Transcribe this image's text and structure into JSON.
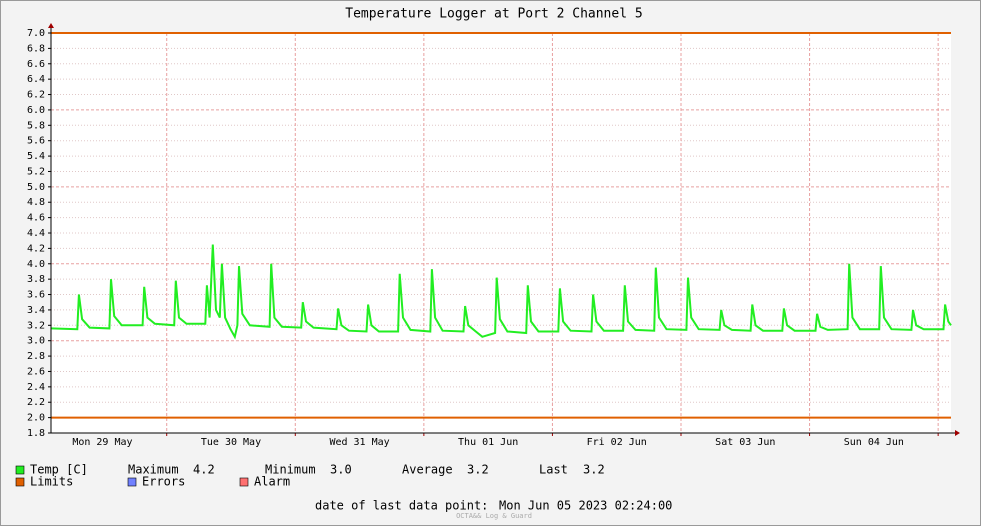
{
  "chart_data": {
    "type": "line",
    "title": "Temperature Logger at Port 2 Channel 5",
    "xlim": [
      0,
      168
    ],
    "xticks": [
      {
        "value": 9.6,
        "label": "Mon 29 May"
      },
      {
        "value": 33.6,
        "label": "Tue 30 May"
      },
      {
        "value": 57.6,
        "label": "Wed 31 May"
      },
      {
        "value": 81.6,
        "label": "Thu 01 Jun"
      },
      {
        "value": 105.6,
        "label": "Fri 02 Jun"
      },
      {
        "value": 129.6,
        "label": "Sat 03 Jun"
      },
      {
        "value": 153.6,
        "label": "Sun 04 Jun"
      }
    ],
    "xgrid": [
      21.6,
      45.6,
      69.6,
      93.6,
      117.6,
      141.6,
      165.6
    ],
    "ylim": [
      1.8,
      7.0
    ],
    "yticks": [
      1.8,
      {
        "value": 2,
        "label": "2.0"
      },
      2.2,
      2.4,
      2.6,
      2.8,
      {
        "value": 3,
        "label": "3.0"
      },
      3.2,
      3.4,
      3.6,
      3.8,
      {
        "value": 4,
        "label": "4.0"
      },
      4.2,
      4.4,
      4.6,
      4.8,
      {
        "value": 5,
        "label": "5.0"
      },
      5.2,
      5.4,
      5.6,
      5.8,
      {
        "value": 6,
        "label": "6.0"
      },
      6.2,
      6.4,
      6.6,
      6.8,
      {
        "value": 7,
        "label": "7.0"
      }
    ],
    "grid": true,
    "series": [
      {
        "name": "Temp [C]",
        "color": "#22ee22",
        "x": [
          0,
          4.9,
          5.2,
          5.8,
          7.2,
          10.9,
          11.2,
          11.8,
          13.2,
          17.1,
          17.4,
          18.0,
          19.4,
          23.0,
          23.3,
          23.9,
          25.3,
          28.8,
          29.1,
          29.6,
          30.2,
          30.8,
          31.5,
          31.9,
          32.5,
          33.5,
          34.3,
          34.8,
          35.1,
          35.7,
          37.1,
          40.8,
          41.1,
          41.7,
          43.1,
          46.7,
          47.0,
          47.6,
          49.0,
          53.3,
          53.6,
          54.2,
          55.6,
          58.9,
          59.2,
          59.8,
          61.2,
          64.8,
          65.1,
          65.7,
          67.1,
          70.8,
          71.1,
          71.7,
          73.1,
          77.0,
          77.3,
          77.9,
          79.3,
          80.5,
          82.9,
          83.2,
          83.8,
          85.2,
          88.7,
          89.0,
          89.6,
          91.0,
          94.7,
          95.0,
          95.6,
          97.0,
          100.9,
          101.2,
          101.8,
          103.2,
          106.8,
          107.1,
          107.7,
          109.1,
          112.6,
          112.9,
          113.5,
          114.9,
          118.6,
          118.9,
          119.5,
          120.9,
          124.8,
          125.1,
          125.7,
          127.1,
          130.6,
          130.9,
          131.5,
          132.9,
          136.5,
          136.8,
          137.4,
          138.8,
          142.7,
          143.0,
          143.6,
          145.0,
          148.7,
          149.0,
          149.6,
          151.0,
          154.6,
          154.9,
          155.5,
          156.9,
          160.6,
          160.9,
          161.5,
          162.9,
          166.6,
          166.9,
          167.5,
          168
        ],
        "values": [
          3.16,
          3.15,
          3.6,
          3.28,
          3.17,
          3.16,
          3.8,
          3.32,
          3.2,
          3.2,
          3.7,
          3.3,
          3.22,
          3.2,
          3.78,
          3.3,
          3.22,
          3.22,
          3.72,
          3.3,
          4.25,
          3.4,
          3.3,
          4.0,
          3.3,
          3.15,
          3.05,
          3.2,
          3.97,
          3.35,
          3.2,
          3.18,
          4.0,
          3.3,
          3.18,
          3.17,
          3.5,
          3.25,
          3.17,
          3.15,
          3.42,
          3.2,
          3.13,
          3.12,
          3.47,
          3.2,
          3.12,
          3.12,
          3.87,
          3.3,
          3.14,
          3.12,
          3.93,
          3.3,
          3.13,
          3.12,
          3.45,
          3.2,
          3.12,
          3.05,
          3.1,
          3.82,
          3.28,
          3.12,
          3.1,
          3.72,
          3.25,
          3.12,
          3.12,
          3.68,
          3.25,
          3.13,
          3.12,
          3.6,
          3.25,
          3.13,
          3.13,
          3.72,
          3.25,
          3.14,
          3.13,
          3.95,
          3.3,
          3.15,
          3.14,
          3.82,
          3.3,
          3.15,
          3.14,
          3.4,
          3.2,
          3.14,
          3.13,
          3.47,
          3.2,
          3.13,
          3.13,
          3.42,
          3.2,
          3.13,
          3.13,
          3.35,
          3.18,
          3.14,
          3.15,
          4.0,
          3.3,
          3.15,
          3.15,
          3.97,
          3.3,
          3.15,
          3.14,
          3.4,
          3.2,
          3.15,
          3.15,
          3.47,
          3.25,
          3.2
        ]
      },
      {
        "name": "Limits",
        "color": "#e06000",
        "values": [
          7.0,
          2.0
        ]
      },
      {
        "name": "Errors",
        "color": "#7080ff"
      },
      {
        "name": "Alarm",
        "color": "#ff7070"
      }
    ],
    "stats": [
      {
        "label": "Maximum",
        "value": "4.2"
      },
      {
        "label": "Minimum",
        "value": "3.0"
      },
      {
        "label": "Average",
        "value": "3.2"
      },
      {
        "label": "Last",
        "value": "3.2"
      }
    ],
    "footer": {
      "label": "date of last data point:",
      "value": "Mon Jun 05 2023 02:24:00"
    },
    "watermark": "OCTA&& Log & Guard"
  }
}
